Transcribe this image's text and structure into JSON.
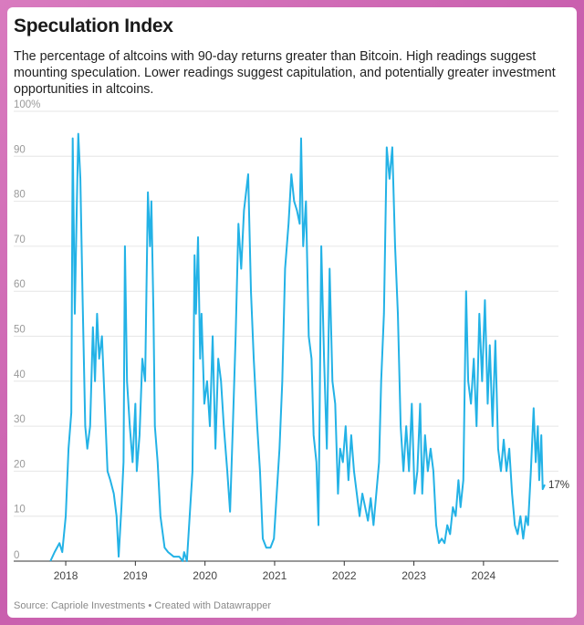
{
  "chart_data": {
    "type": "line",
    "title": "Speculation Index",
    "subtitle": "The percentage of altcoins with 90-day returns greater than Bitcoin. High readings suggest mounting speculation. Lower readings suggest capitulation, and potentially greater investment opportunities in altcoins.",
    "source": "Source: Capriole Investments • Created with Datawrapper",
    "color": "#23b2e6",
    "grid": true,
    "xlim": [
      2017.58,
      2025.05
    ],
    "xticks": [
      2018,
      2019,
      2020,
      2021,
      2022,
      2023,
      2024
    ],
    "ylim": [
      0,
      100
    ],
    "yticks": [
      0,
      10,
      20,
      30,
      40,
      50,
      60,
      70,
      80,
      90,
      {
        "value": 100,
        "label": "100%"
      }
    ],
    "annotations": [
      {
        "x": 2024.88,
        "y": 17,
        "label": "17%"
      }
    ],
    "x": [
      2017.78,
      2017.84,
      2017.91,
      2017.95,
      2018.0,
      2018.04,
      2018.08,
      2018.1,
      2018.13,
      2018.16,
      2018.18,
      2018.21,
      2018.24,
      2018.28,
      2018.31,
      2018.35,
      2018.39,
      2018.42,
      2018.45,
      2018.48,
      2018.52,
      2018.56,
      2018.6,
      2018.64,
      2018.69,
      2018.73,
      2018.76,
      2018.8,
      2018.83,
      2018.85,
      2018.88,
      2018.92,
      2018.96,
      2019.0,
      2019.02,
      2019.06,
      2019.1,
      2019.14,
      2019.18,
      2019.21,
      2019.23,
      2019.26,
      2019.28,
      2019.32,
      2019.36,
      2019.42,
      2019.47,
      2019.55,
      2019.63,
      2019.68,
      2019.7,
      2019.74,
      2019.78,
      2019.82,
      2019.85,
      2019.87,
      2019.9,
      2019.93,
      2019.95,
      2019.99,
      2020.03,
      2020.07,
      2020.11,
      2020.15,
      2020.19,
      2020.23,
      2020.27,
      2020.32,
      2020.36,
      2020.4,
      2020.44,
      2020.48,
      2020.52,
      2020.56,
      2020.59,
      2020.62,
      2020.66,
      2020.7,
      2020.75,
      2020.79,
      2020.83,
      2020.88,
      2020.94,
      2020.99,
      2021.03,
      2021.07,
      2021.11,
      2021.15,
      2021.2,
      2021.24,
      2021.28,
      2021.32,
      2021.36,
      2021.38,
      2021.41,
      2021.45,
      2021.49,
      2021.53,
      2021.56,
      2021.6,
      2021.63,
      2021.67,
      2021.71,
      2021.75,
      2021.79,
      2021.83,
      2021.87,
      2021.91,
      2021.94,
      2021.98,
      2022.02,
      2022.06,
      2022.1,
      2022.14,
      2022.18,
      2022.22,
      2022.26,
      2022.3,
      2022.34,
      2022.38,
      2022.42,
      2022.46,
      2022.5,
      2022.53,
      2022.57,
      2022.61,
      2022.65,
      2022.69,
      2022.73,
      2022.77,
      2022.81,
      2022.85,
      2022.89,
      2022.93,
      2022.97,
      2023.01,
      2023.05,
      2023.09,
      2023.12,
      2023.16,
      2023.2,
      2023.24,
      2023.28,
      2023.32,
      2023.36,
      2023.4,
      2023.44,
      2023.48,
      2023.52,
      2023.56,
      2023.6,
      2023.64,
      2023.67,
      2023.71,
      2023.75,
      2023.78,
      2023.82,
      2023.86,
      2023.9,
      2023.94,
      2023.98,
      2024.02,
      2024.06,
      2024.09,
      2024.13,
      2024.17,
      2024.21,
      2024.25,
      2024.29,
      2024.33,
      2024.37,
      2024.41,
      2024.45,
      2024.49,
      2024.53,
      2024.57,
      2024.61,
      2024.64,
      2024.68,
      2024.72,
      2024.75,
      2024.78,
      2024.8,
      2024.83,
      2024.85,
      2024.88
    ],
    "values": [
      0,
      2,
      4,
      2,
      10,
      25,
      33,
      94,
      55,
      80,
      95,
      85,
      60,
      30,
      25,
      30,
      52,
      40,
      55,
      45,
      50,
      35,
      20,
      18,
      15,
      10,
      1,
      12,
      22,
      70,
      40,
      30,
      22,
      35,
      20,
      28,
      45,
      40,
      82,
      70,
      80,
      55,
      30,
      22,
      10,
      3,
      2,
      1,
      1,
      0,
      2,
      0,
      10,
      20,
      68,
      55,
      72,
      45,
      55,
      35,
      40,
      30,
      50,
      25,
      45,
      40,
      30,
      20,
      11,
      30,
      50,
      75,
      65,
      78,
      82,
      86,
      60,
      45,
      30,
      20,
      5,
      3,
      3,
      5,
      15,
      25,
      40,
      65,
      75,
      86,
      80,
      78,
      75,
      94,
      70,
      80,
      50,
      45,
      28,
      22,
      8,
      70,
      45,
      25,
      65,
      40,
      35,
      15,
      25,
      22,
      30,
      18,
      28,
      20,
      15,
      10,
      15,
      12,
      9,
      14,
      8,
      15,
      22,
      40,
      55,
      92,
      85,
      92,
      70,
      55,
      30,
      20,
      30,
      20,
      35,
      15,
      20,
      35,
      15,
      28,
      20,
      25,
      20,
      8,
      4,
      5,
      4,
      8,
      6,
      12,
      10,
      18,
      12,
      18,
      60,
      40,
      35,
      45,
      30,
      55,
      40,
      58,
      35,
      48,
      30,
      49,
      25,
      20,
      27,
      20,
      25,
      15,
      8,
      6,
      10,
      5,
      10,
      8,
      20,
      34,
      22,
      30,
      18,
      28,
      16,
      17
    ]
  }
}
